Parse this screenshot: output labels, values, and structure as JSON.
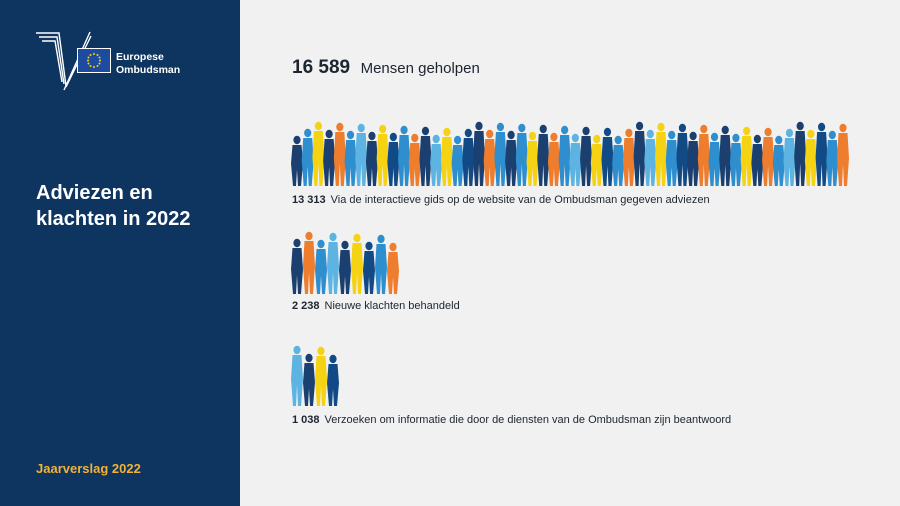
{
  "sidebar": {
    "logo": {
      "line1": "Europese",
      "line2": "Ombudsman",
      "icon": "european-ombudsman-logo"
    },
    "title": "Adviezen en klachten in 2022",
    "footer": "Jaarverslag 2022"
  },
  "headline": {
    "number": "16 589",
    "label": "Mensen geholpen"
  },
  "stats": [
    {
      "number": "13 313",
      "label": "Via de interactieve gids op de website van de Ombudsman gegeven adviezen"
    },
    {
      "number": "2 238",
      "label": "Nieuwe klachten behandeld"
    },
    {
      "number": "1 038",
      "label": "Verzoeken om informatie die door de diensten van de Ombudsman zijn beantwoord"
    }
  ],
  "colors": {
    "sidebar": "#0e3460",
    "accent": "#f2b233",
    "people": [
      "#1b3f6e",
      "#2f8fce",
      "#f5d312",
      "#ee7d2e",
      "#5db4e3",
      "#124a86"
    ]
  }
}
